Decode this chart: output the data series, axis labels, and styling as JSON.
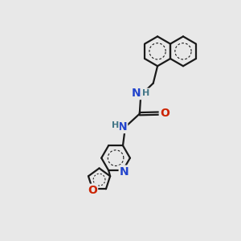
{
  "bg_color": "#e8e8e8",
  "bond_color": "#1a1a1a",
  "bond_width": 1.6,
  "N_color": "#2244cc",
  "O_color": "#cc2200",
  "NH_color": "#447788",
  "font_size": 9,
  "fig_width": 3.0,
  "fig_height": 3.0,
  "dpi": 100,
  "xlim": [
    0,
    10
  ],
  "ylim": [
    0,
    10
  ],
  "naph_r": 0.62,
  "pyr_r": 0.6,
  "furan_r": 0.48
}
